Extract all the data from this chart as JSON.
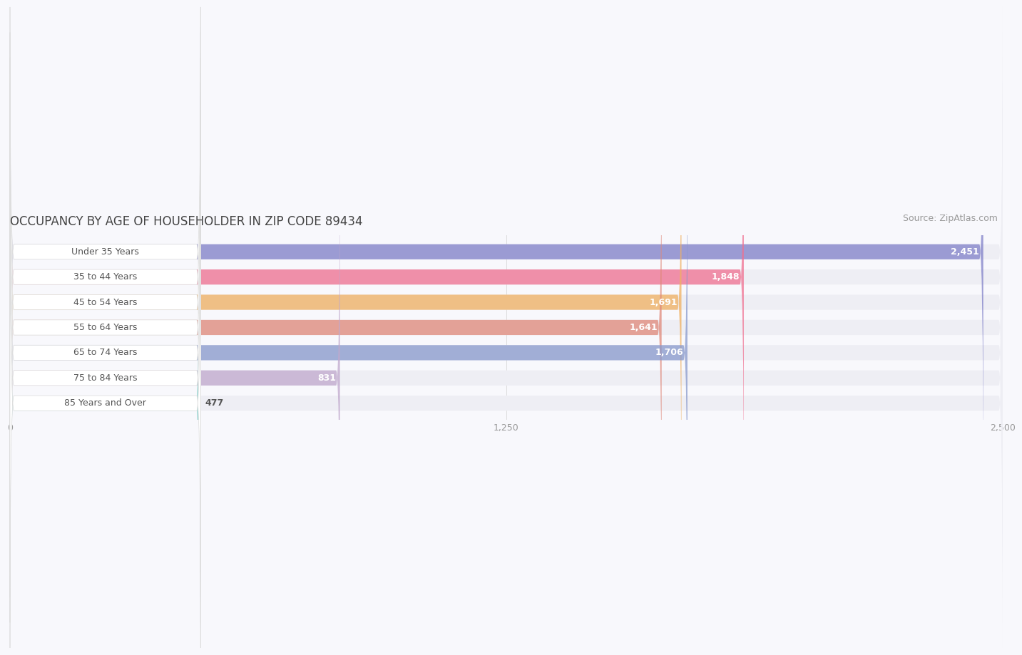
{
  "title": "OCCUPANCY BY AGE OF HOUSEHOLDER IN ZIP CODE 89434",
  "source": "Source: ZipAtlas.com",
  "categories": [
    "Under 35 Years",
    "35 to 44 Years",
    "45 to 54 Years",
    "55 to 64 Years",
    "65 to 74 Years",
    "75 to 84 Years",
    "85 Years and Over"
  ],
  "values": [
    2451,
    1848,
    1691,
    1641,
    1706,
    831,
    477
  ],
  "bar_colors": [
    "#8080c8",
    "#f07090",
    "#f0b060",
    "#e08878",
    "#8899cc",
    "#c0a8cc",
    "#70c8c0"
  ],
  "bar_bg_color": "#eeeef4",
  "xlim_max": 2600,
  "data_max": 2500,
  "xticks": [
    0,
    1250,
    2500
  ],
  "xtick_labels": [
    "0",
    "1,250",
    "2,500"
  ],
  "title_fontsize": 12,
  "source_fontsize": 9,
  "tick_fontsize": 9,
  "bar_label_fontsize": 9,
  "value_fontsize": 9,
  "background_color": "#f8f8fc",
  "label_bg_color": "#ffffff",
  "label_text_color": "#555555",
  "value_inside_color": "white",
  "value_outside_color": "#555555",
  "grid_color": "#dddddd"
}
